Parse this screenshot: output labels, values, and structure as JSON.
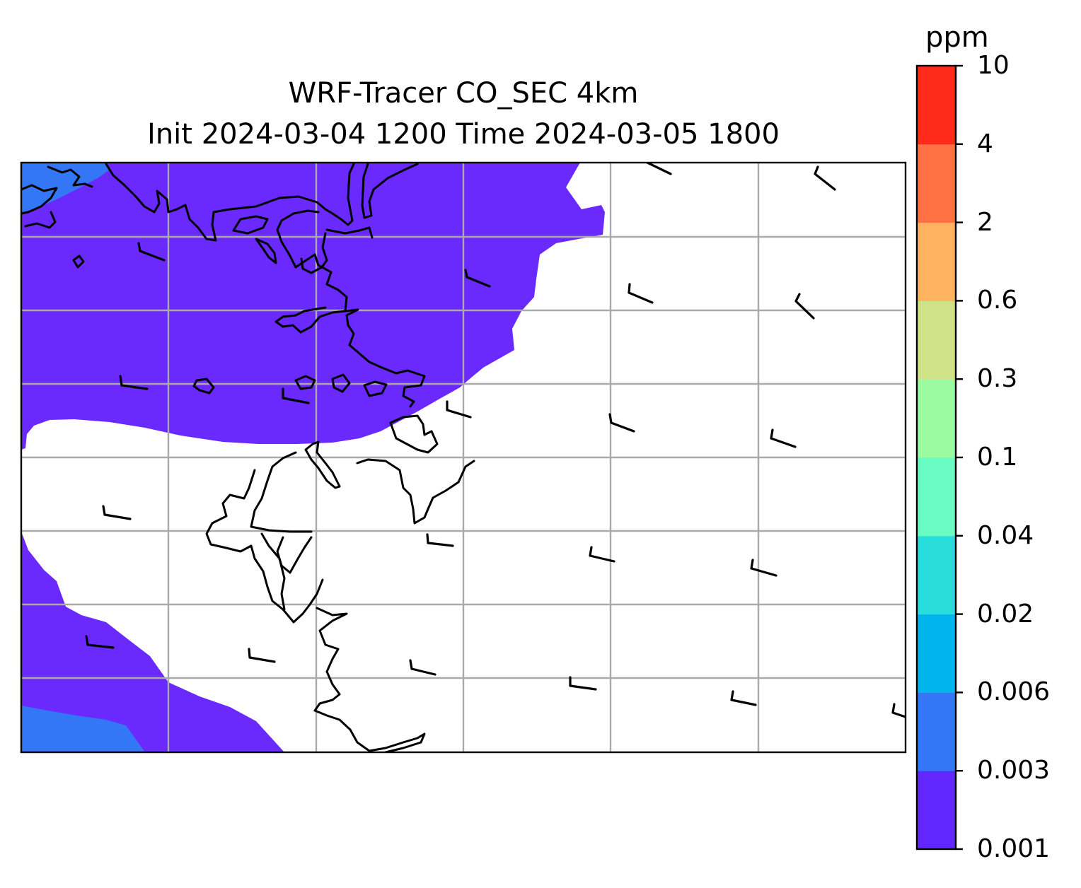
{
  "map": {
    "title": "WRF-Tracer CO_SEC 4km",
    "subtitle": "Init 2024-03-04 1200 Time 2024-03-05 1800",
    "background_color": "#ffffff",
    "coastline_color": "#000000",
    "gridline_color": "#aaaaaa",
    "gridlines": true,
    "wind_barbs": true
  },
  "colorbar": {
    "unit": "ppm",
    "orientation": "vertical",
    "placement": "right",
    "levels": [
      "0.001",
      "0.003",
      "0.006",
      "0.02",
      "0.04",
      "0.1",
      "0.3",
      "0.6",
      "2",
      "4",
      "10"
    ],
    "colors": [
      "#6226fe",
      "#3377f6",
      "#00b5eb",
      "#2adddd",
      "#69fbc1",
      "#9bfba1",
      "#cfe287",
      "#ffb360",
      "#ff7142",
      "#ff2a1a"
    ]
  },
  "fields": {
    "tracer_fill_colors": [
      "#6a2afe",
      "#3377f6"
    ]
  }
}
